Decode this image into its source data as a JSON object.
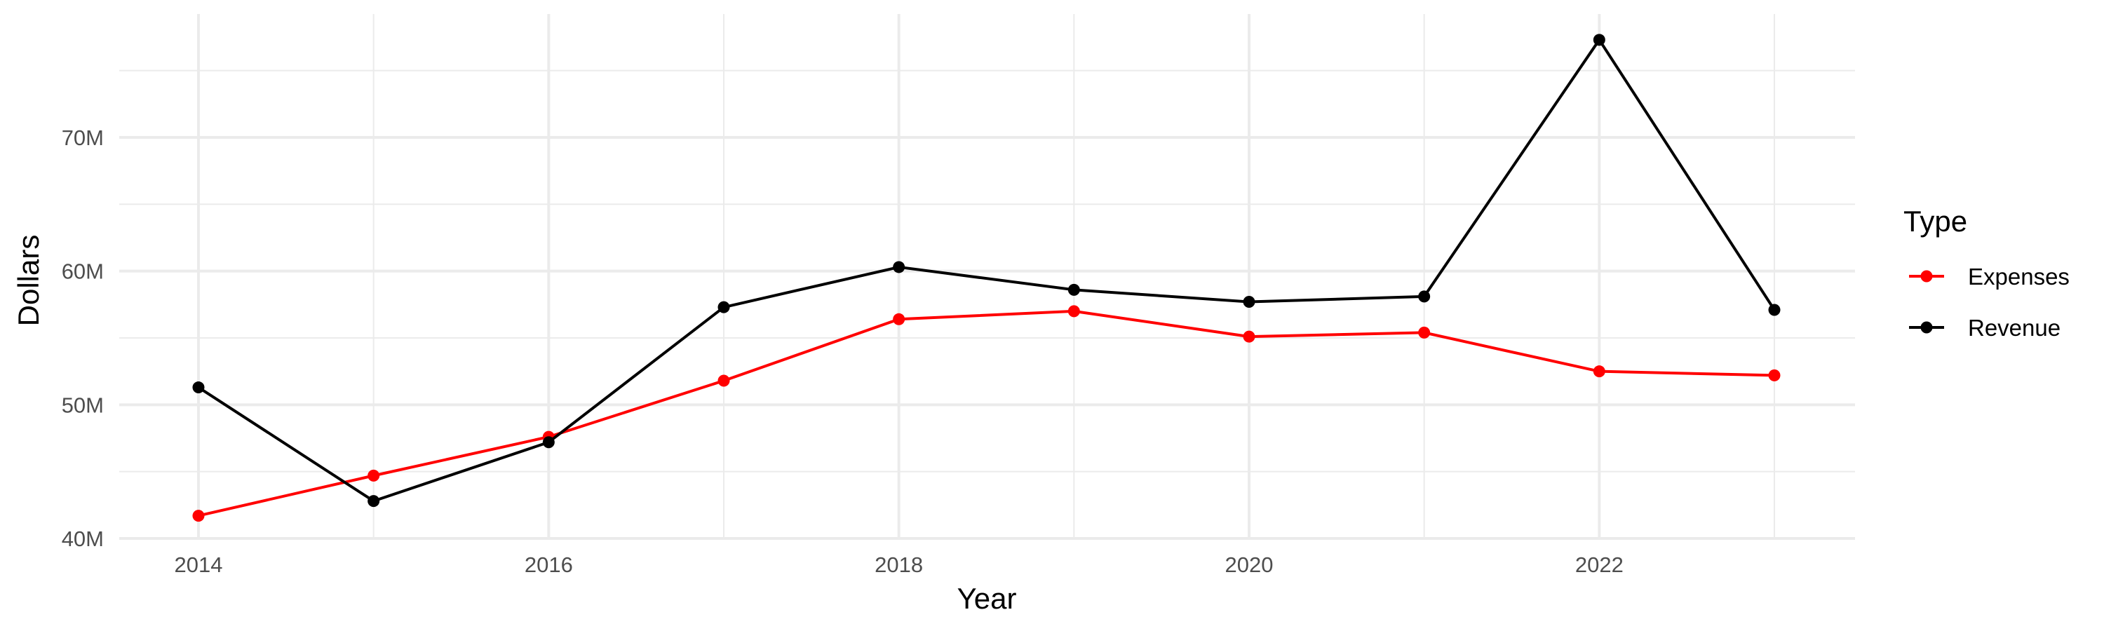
{
  "chart_data": {
    "type": "line",
    "xlabel": "Year",
    "ylabel": "Dollars",
    "x": [
      2014,
      2015,
      2016,
      2017,
      2018,
      2019,
      2020,
      2021,
      2022,
      2023
    ],
    "x_ticks": [
      2014,
      2016,
      2018,
      2020,
      2022
    ],
    "x_tick_labels": [
      "2014",
      "2016",
      "2018",
      "2020",
      "2022"
    ],
    "xlim": [
      2014,
      2023
    ],
    "y_ticks": [
      40000000,
      50000000,
      60000000,
      70000000
    ],
    "y_tick_labels": [
      "40M",
      "50M",
      "60M",
      "70M"
    ],
    "ylim": [
      40000000,
      77300000
    ],
    "grid": true,
    "legend": {
      "title": "Type",
      "position": "right"
    },
    "series": [
      {
        "name": "Expenses",
        "color": "#ff0000",
        "values": [
          41700000,
          44700000,
          47600000,
          51800000,
          56400000,
          57000000,
          55100000,
          55400000,
          52500000,
          52200000
        ]
      },
      {
        "name": "Revenue",
        "color": "#000000",
        "values": [
          51300000,
          42800000,
          47200000,
          57300000,
          60300000,
          58600000,
          57700000,
          58100000,
          77300000,
          57100000
        ]
      }
    ]
  }
}
